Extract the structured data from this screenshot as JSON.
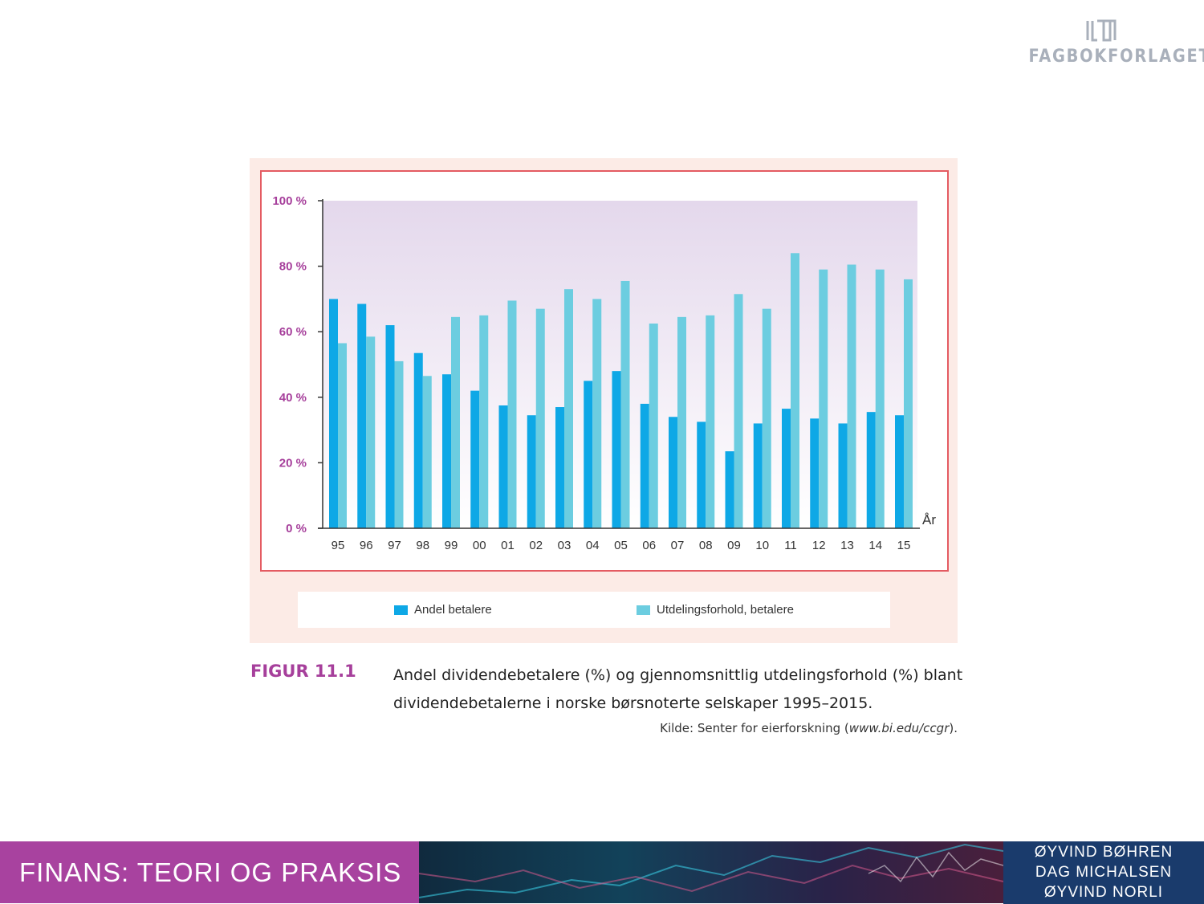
{
  "publisher": {
    "logo_text": "FAGBOKFORLAGET",
    "logo_icon": "book-logo-icon"
  },
  "legend": {
    "items": [
      {
        "label": "Andel betalere",
        "color": "#0ea8e6"
      },
      {
        "label": "Utdelingsforhold, betalere",
        "color": "#6ccde0"
      }
    ]
  },
  "chart_data": {
    "type": "bar",
    "xlabel": "År",
    "ylabel": "",
    "ylim": [
      0,
      100
    ],
    "yticks": [
      "0 %",
      "20 %",
      "40 %",
      "60 %",
      "80 %",
      "100 %"
    ],
    "grid": false,
    "legend_position": "bottom",
    "categories": [
      "95",
      "96",
      "97",
      "98",
      "99",
      "00",
      "01",
      "02",
      "03",
      "04",
      "05",
      "06",
      "07",
      "08",
      "09",
      "10",
      "11",
      "12",
      "13",
      "14",
      "15"
    ],
    "series": [
      {
        "name": "Andel betalere",
        "color": "#0ea8e6",
        "values": [
          70,
          68.5,
          62,
          53.5,
          47,
          42,
          37.5,
          34.5,
          37,
          45,
          48,
          38,
          34,
          32.5,
          23.5,
          32,
          36.5,
          33.5,
          32,
          35.5,
          34.5
        ]
      },
      {
        "name": "Utdelingsforhold, betalere",
        "color": "#6ccde0",
        "values": [
          56.5,
          58.5,
          51,
          46.5,
          64.5,
          65,
          69.5,
          67,
          73,
          70,
          75.5,
          62.5,
          64.5,
          65,
          71.5,
          67,
          84,
          79,
          80.5,
          79,
          76
        ]
      }
    ]
  },
  "figure": {
    "label": "FIGUR 11.1",
    "caption": "Andel dividendebetalere (%) og gjennomsnittlig utdelingsforhold (%) blant dividendebetalerne i norske børsnoterte selskaper 1995–2015.",
    "source_prefix": "Kilde: Senter for eierforskning (",
    "source_url": "www.bi.edu/ccgr",
    "source_suffix": ")."
  },
  "footer": {
    "title": "FINANS: TEORI OG PRAKSIS",
    "authors": [
      "ØYVIND BØHREN",
      "DAG MICHALSEN",
      "ØYVIND NORLI"
    ]
  }
}
